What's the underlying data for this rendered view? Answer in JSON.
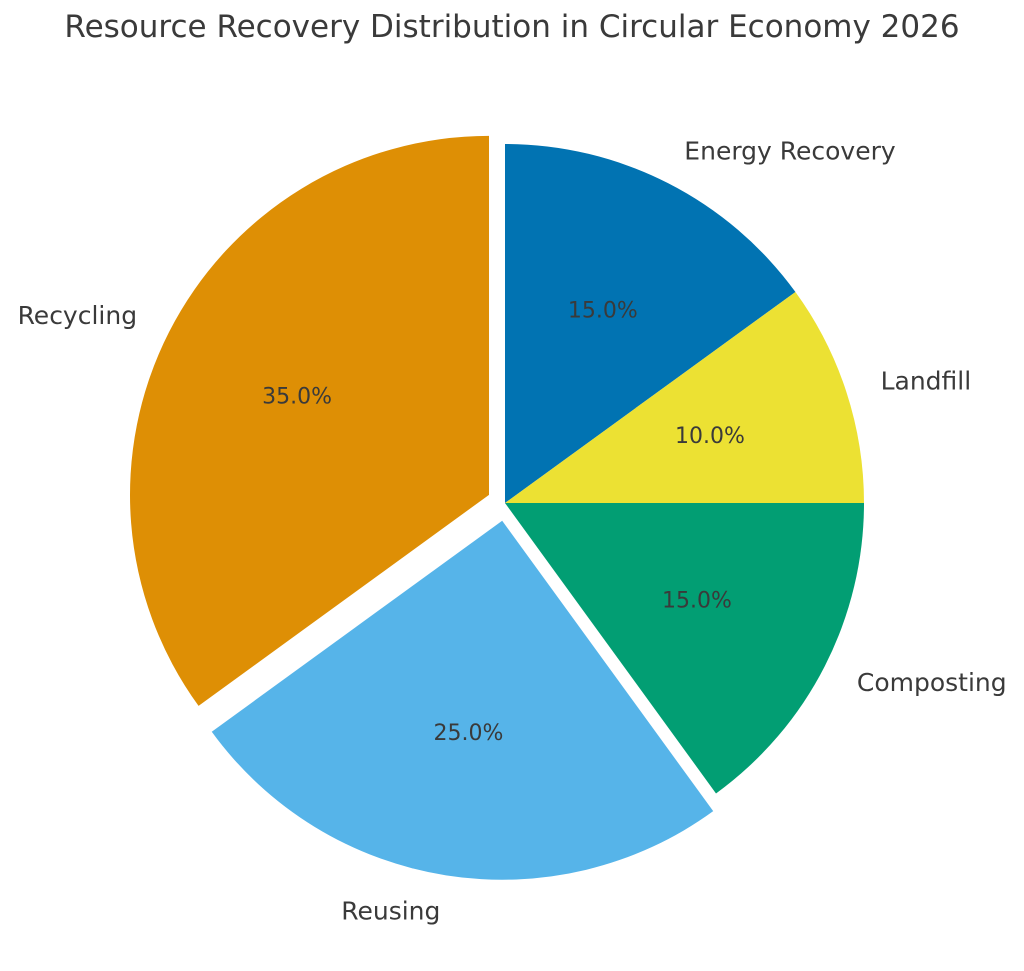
{
  "chart_data": {
    "type": "pie",
    "title": "Resource Recovery Distribution in Circular Economy 2026",
    "categories": [
      "Energy Recovery",
      "Landfill",
      "Composting",
      "Reusing",
      "Recycling"
    ],
    "values": [
      15.0,
      10.0,
      15.0,
      25.0,
      35.0
    ],
    "unit": "percent",
    "percent_labels": [
      "15.0%",
      "10.0%",
      "15.0%",
      "25.0%",
      "35.0%"
    ],
    "colors": [
      "#0173b2",
      "#ece133",
      "#029e73",
      "#56b4e9",
      "#de8f05"
    ],
    "explode": [
      0,
      0,
      0,
      0.05,
      0.05
    ],
    "start_angle_deg": 90,
    "counterclockwise": false,
    "slice_order": "clockwise from 12 o'clock",
    "pct_distance": 0.6,
    "label_distance": 1.1,
    "legend": "none",
    "text_color": "#3a3a3a",
    "background": "#ffffff"
  }
}
